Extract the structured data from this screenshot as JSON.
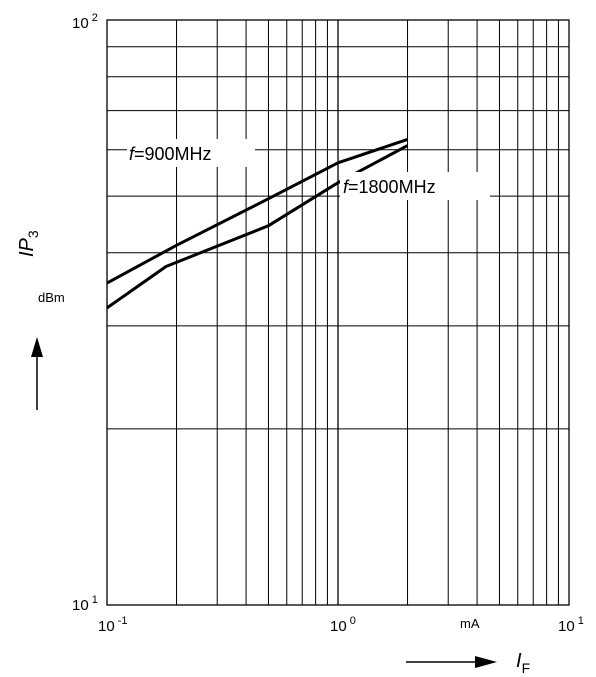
{
  "chart_data": {
    "type": "line",
    "x_scale": "log",
    "y_scale": "log",
    "xlim": [
      0.1,
      10
    ],
    "ylim": [
      10,
      100
    ],
    "grid": true,
    "x_ticks": [
      {
        "base": "10",
        "exp": "-1"
      },
      {
        "base": "10",
        "exp": "0"
      },
      {
        "base": "10",
        "exp": "1"
      }
    ],
    "y_ticks": [
      {
        "base": "10",
        "exp": "1"
      },
      {
        "base": "10",
        "exp": "2"
      }
    ],
    "x_unit": "mA",
    "y_unit": "dBm",
    "xlabel": {
      "main": "I",
      "sub": "F"
    },
    "ylabel": {
      "main": "IP",
      "sub": "3"
    },
    "series": [
      {
        "name": "f=900MHz",
        "label_italic": "f",
        "label_rest": "=900MHz",
        "x": [
          0.1,
          0.2,
          0.5,
          1.0,
          2.0
        ],
        "y": [
          35.5,
          41.2,
          49.5,
          57.0,
          62.5
        ]
      },
      {
        "name": "f=1800MHz",
        "label_italic": "f",
        "label_rest": "=1800MHz",
        "x": [
          0.1,
          0.18,
          0.5,
          1.0,
          2.0
        ],
        "y": [
          32.2,
          37.9,
          44.5,
          52.7,
          61.0
        ]
      }
    ],
    "line_color": "#000000",
    "grid_color": "#000000"
  }
}
